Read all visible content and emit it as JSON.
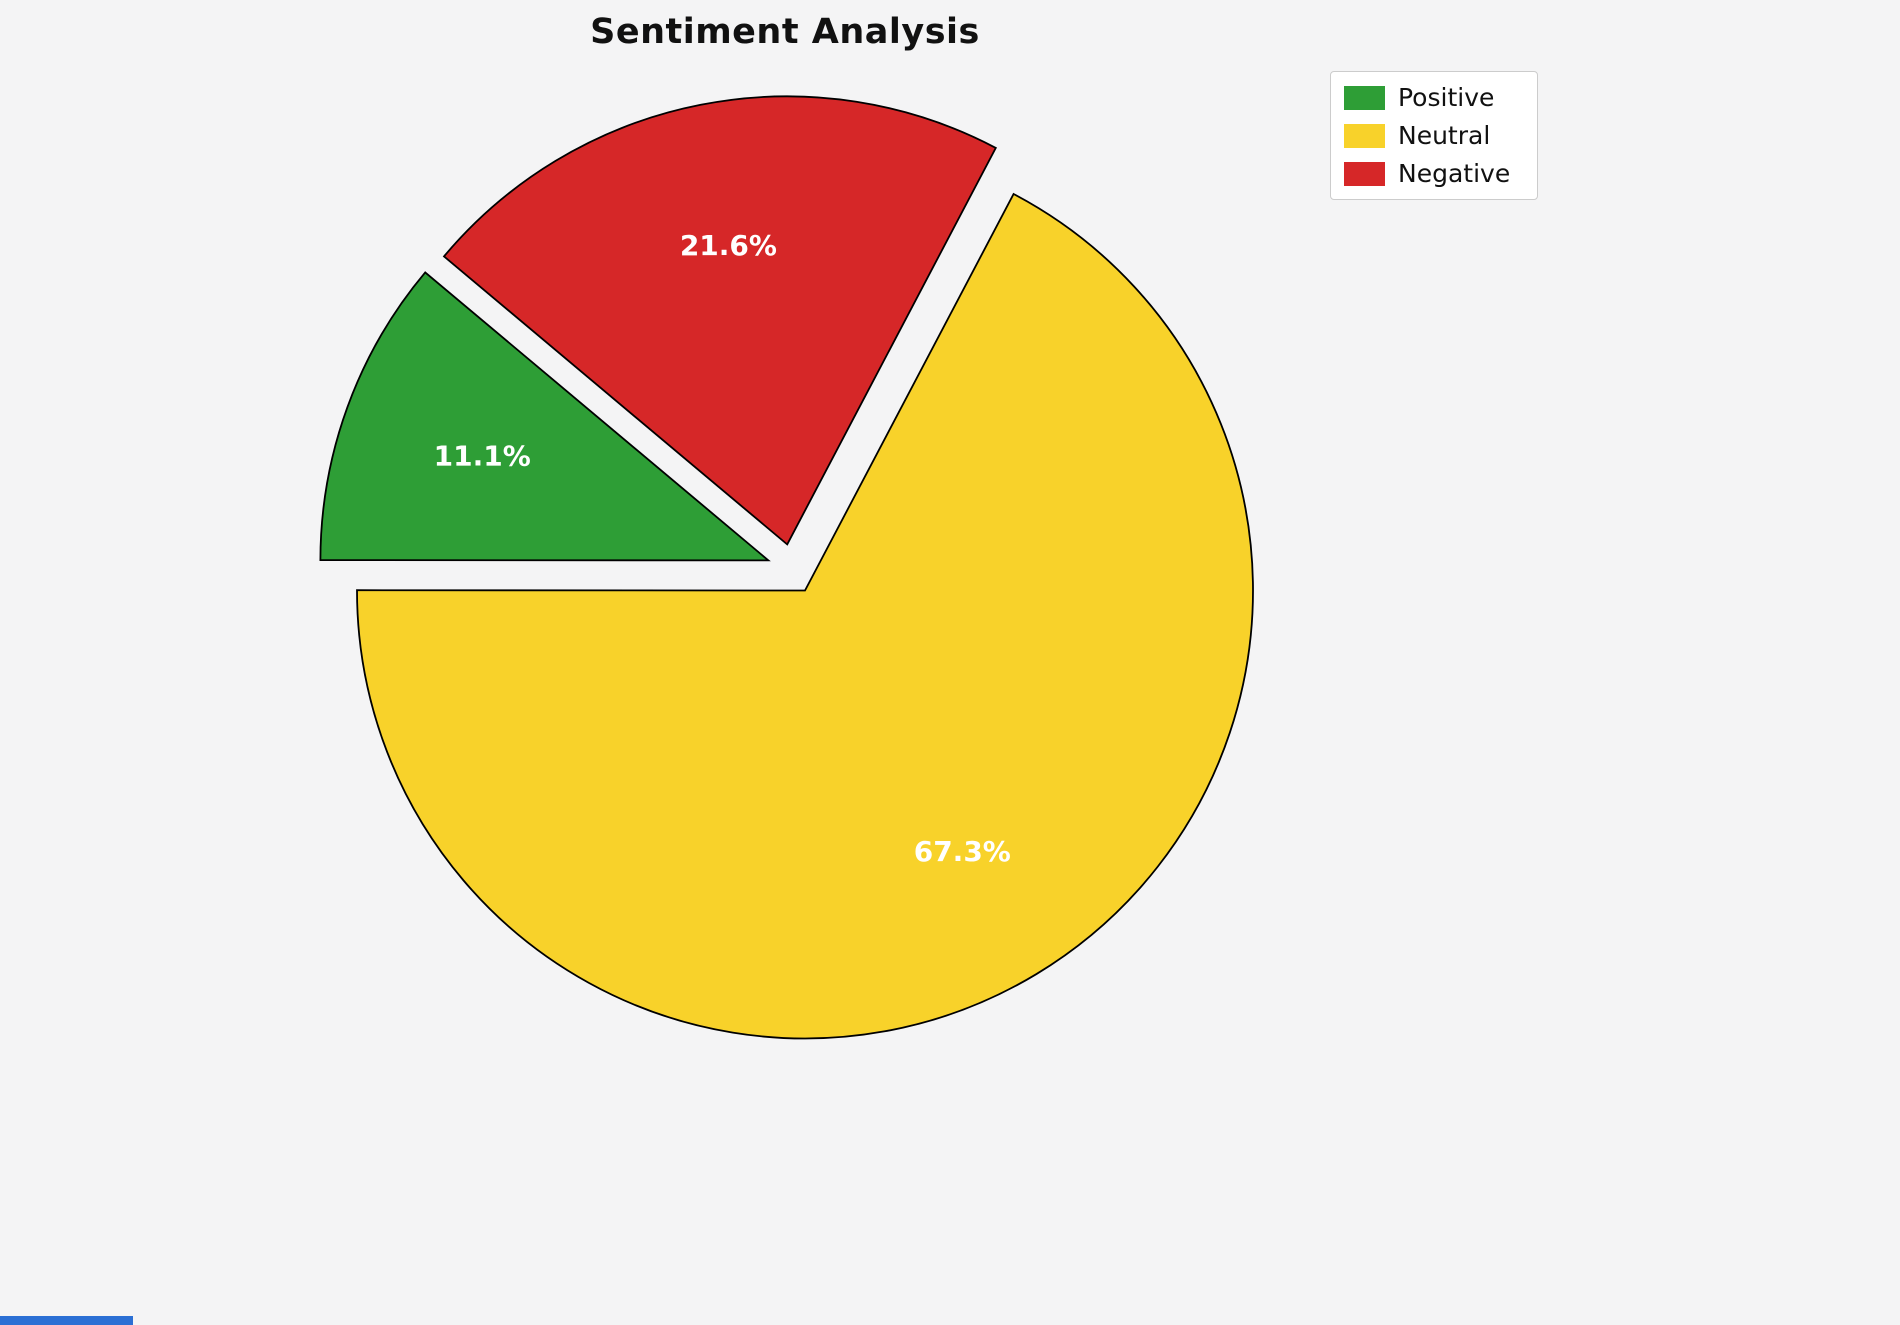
{
  "page": {
    "background": "#f4f4f5"
  },
  "chart_data": {
    "type": "pie",
    "title": "Sentiment Analysis",
    "categories": [
      "Positive",
      "Neutral",
      "Negative"
    ],
    "values": [
      11.1,
      67.3,
      21.6
    ],
    "value_labels": [
      "11.1%",
      "67.3%",
      "21.6%"
    ],
    "colors": [
      "#2e9e36",
      "#f8d22a",
      "#d62728"
    ],
    "edge_color": "#000000",
    "label_color": "#ffffff",
    "start_angle": 140,
    "counterclock": true,
    "explode": [
      0.056,
      0.056,
      0.056
    ],
    "pctdistance": 0.68,
    "legend_position": "upper right"
  }
}
